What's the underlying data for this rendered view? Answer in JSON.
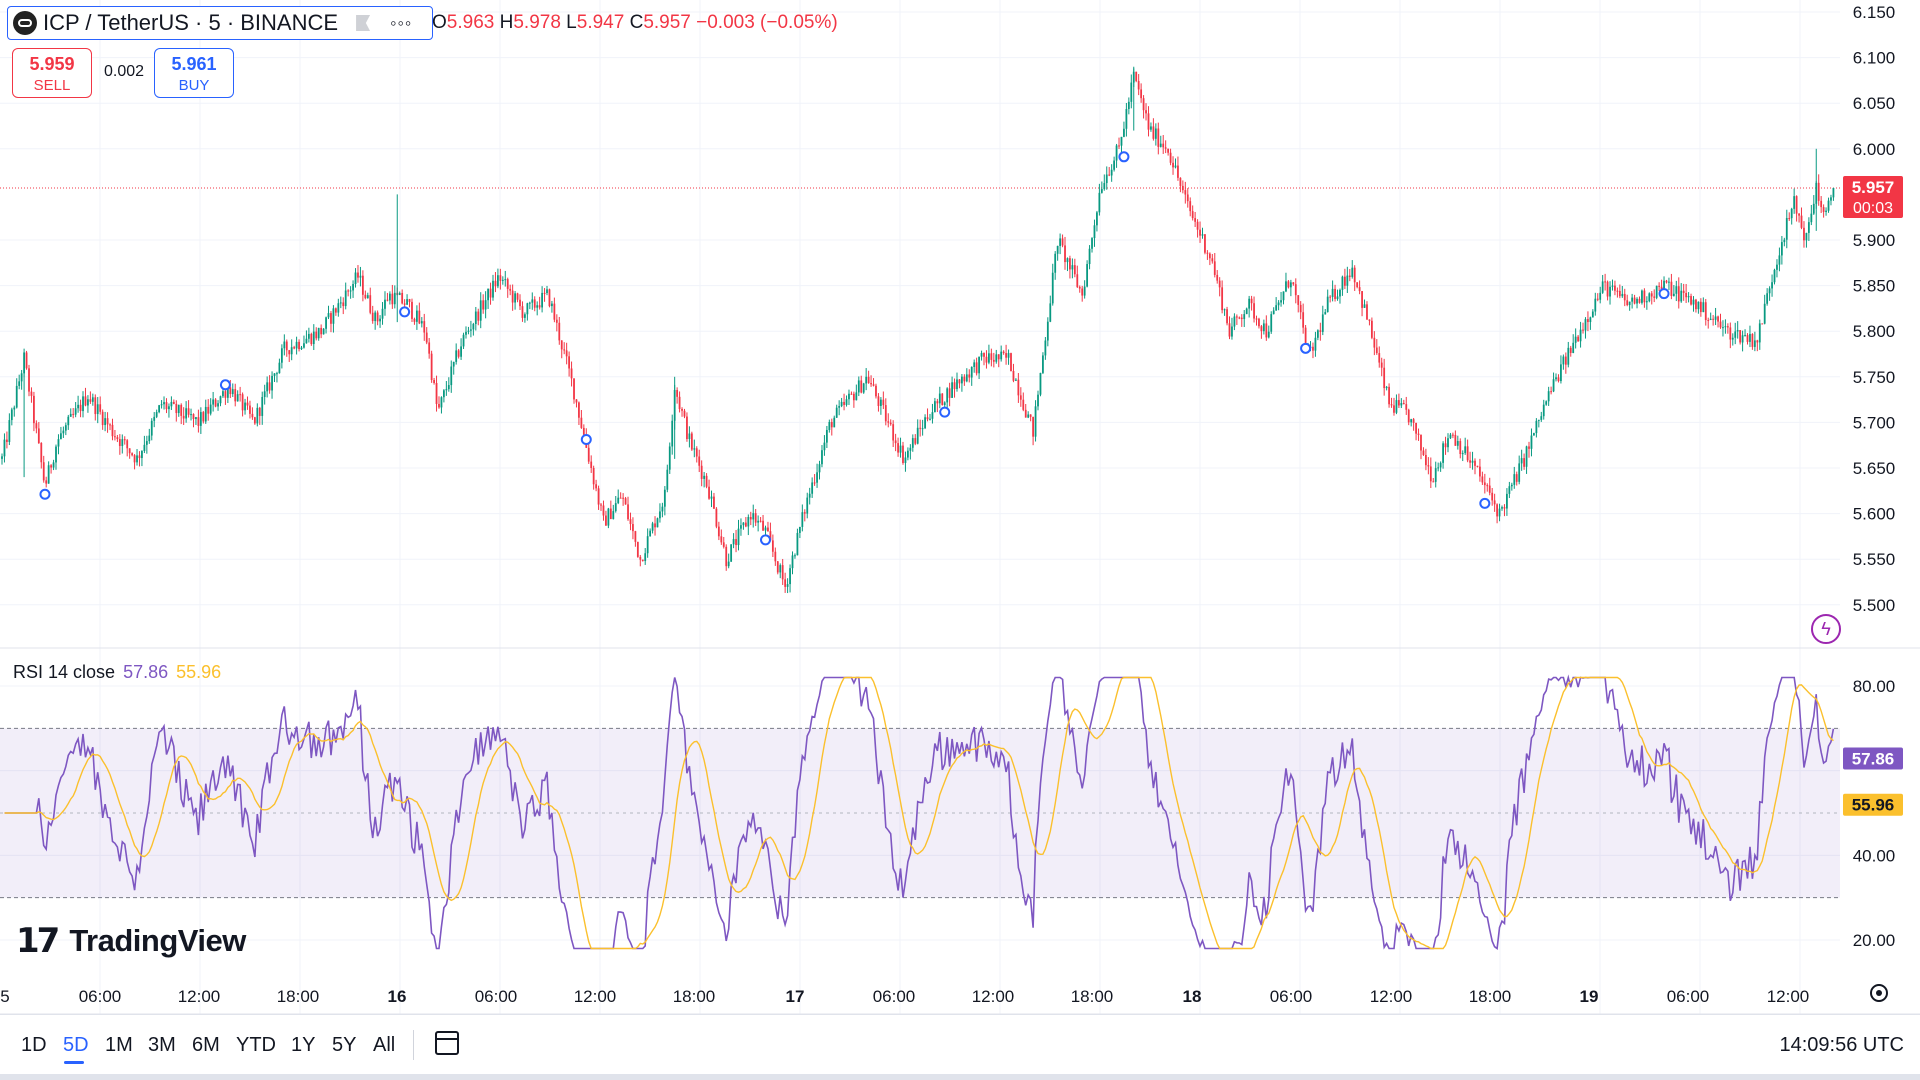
{
  "header": {
    "symbol": "ICP / TetherUS · 5 · BINANCE",
    "ohlc": {
      "o_label": "O",
      "o": "5.963",
      "h_label": "H",
      "h": "5.978",
      "l_label": "L",
      "l": "5.947",
      "c_label": "C",
      "c": "5.957",
      "change": "−0.003 (−0.05%)"
    },
    "sell": {
      "price": "5.959",
      "label": "SELL"
    },
    "spread": "0.002",
    "buy": {
      "price": "5.961",
      "label": "BUY"
    }
  },
  "price_axis": {
    "ticks": [
      "6.150",
      "6.100",
      "6.050",
      "6.000",
      "5.900",
      "5.850",
      "5.800",
      "5.750",
      "5.700",
      "5.650",
      "5.600",
      "5.550",
      "5.500"
    ]
  },
  "last_price": {
    "price": "5.957",
    "countdown": "00:03"
  },
  "rsi": {
    "label": "RSI 14 close",
    "value": "57.86",
    "ma_value": "55.96",
    "ticks": [
      "80.00",
      "40.00",
      "20.00"
    ],
    "upper_band": 70,
    "lower_band": 30
  },
  "time_axis": {
    "labels": [
      "5",
      "06:00",
      "12:00",
      "18:00",
      "16",
      "06:00",
      "12:00",
      "18:00",
      "17",
      "06:00",
      "12:00",
      "18:00",
      "18",
      "06:00",
      "12:00",
      "18:00",
      "19",
      "06:00",
      "12:00"
    ]
  },
  "branding": {
    "name": "TradingView"
  },
  "timeframes": {
    "items": [
      "1D",
      "5D",
      "1M",
      "3M",
      "6M",
      "YTD",
      "1Y",
      "5Y",
      "All"
    ],
    "active": "5D"
  },
  "clock": "14:09:56 UTC",
  "colors": {
    "up": "#089981",
    "down": "#f23645",
    "rsi": "#7e57c2",
    "rsi_ma": "#fbc02d",
    "accent": "#2962ff"
  },
  "chart_data": [
    {
      "type": "candlestick",
      "title": "ICP / TetherUS · 5 · BINANCE",
      "ylim": [
        5.48,
        6.155
      ],
      "anchors": [
        {
          "t": 0,
          "p": 5.66
        },
        {
          "t": 18,
          "p": 5.77
        },
        {
          "t": 35,
          "p": 5.63
        },
        {
          "t": 45,
          "p": 5.68
        },
        {
          "t": 70,
          "p": 5.73
        },
        {
          "t": 90,
          "p": 5.69
        },
        {
          "t": 110,
          "p": 5.66
        },
        {
          "t": 130,
          "p": 5.72
        },
        {
          "t": 160,
          "p": 5.7
        },
        {
          "t": 185,
          "p": 5.74
        },
        {
          "t": 205,
          "p": 5.7
        },
        {
          "t": 230,
          "p": 5.78
        },
        {
          "t": 260,
          "p": 5.8
        },
        {
          "t": 290,
          "p": 5.86
        },
        {
          "t": 305,
          "p": 5.81
        },
        {
          "t": 315,
          "p": 5.84
        },
        {
          "t": 330,
          "p": 5.83
        },
        {
          "t": 345,
          "p": 5.8
        },
        {
          "t": 355,
          "p": 5.71
        },
        {
          "t": 375,
          "p": 5.79
        },
        {
          "t": 405,
          "p": 5.86
        },
        {
          "t": 425,
          "p": 5.82
        },
        {
          "t": 445,
          "p": 5.84
        },
        {
          "t": 465,
          "p": 5.74
        },
        {
          "t": 475,
          "p": 5.68
        },
        {
          "t": 490,
          "p": 5.59
        },
        {
          "t": 505,
          "p": 5.62
        },
        {
          "t": 520,
          "p": 5.55
        },
        {
          "t": 540,
          "p": 5.62
        },
        {
          "t": 548,
          "p": 5.74
        },
        {
          "t": 560,
          "p": 5.68
        },
        {
          "t": 575,
          "p": 5.63
        },
        {
          "t": 590,
          "p": 5.55
        },
        {
          "t": 610,
          "p": 5.6
        },
        {
          "t": 622,
          "p": 5.58
        },
        {
          "t": 638,
          "p": 5.52
        },
        {
          "t": 655,
          "p": 5.61
        },
        {
          "t": 675,
          "p": 5.7
        },
        {
          "t": 705,
          "p": 5.75
        },
        {
          "t": 735,
          "p": 5.66
        },
        {
          "t": 755,
          "p": 5.71
        },
        {
          "t": 775,
          "p": 5.74
        },
        {
          "t": 800,
          "p": 5.77
        },
        {
          "t": 820,
          "p": 5.77
        },
        {
          "t": 840,
          "p": 5.69
        },
        {
          "t": 860,
          "p": 5.9
        },
        {
          "t": 880,
          "p": 5.84
        },
        {
          "t": 895,
          "p": 5.96
        },
        {
          "t": 910,
          "p": 6.0
        },
        {
          "t": 922,
          "p": 6.08
        },
        {
          "t": 935,
          "p": 6.02
        },
        {
          "t": 950,
          "p": 6.0
        },
        {
          "t": 965,
          "p": 5.94
        },
        {
          "t": 985,
          "p": 5.88
        },
        {
          "t": 1000,
          "p": 5.8
        },
        {
          "t": 1015,
          "p": 5.83
        },
        {
          "t": 1030,
          "p": 5.8
        },
        {
          "t": 1050,
          "p": 5.86
        },
        {
          "t": 1065,
          "p": 5.77
        },
        {
          "t": 1080,
          "p": 5.83
        },
        {
          "t": 1100,
          "p": 5.87
        },
        {
          "t": 1115,
          "p": 5.8
        },
        {
          "t": 1130,
          "p": 5.72
        },
        {
          "t": 1145,
          "p": 5.71
        },
        {
          "t": 1165,
          "p": 5.64
        },
        {
          "t": 1180,
          "p": 5.69
        },
        {
          "t": 1200,
          "p": 5.65
        },
        {
          "t": 1220,
          "p": 5.6
        },
        {
          "t": 1240,
          "p": 5.66
        },
        {
          "t": 1260,
          "p": 5.73
        },
        {
          "t": 1285,
          "p": 5.8
        },
        {
          "t": 1305,
          "p": 5.85
        },
        {
          "t": 1325,
          "p": 5.83
        },
        {
          "t": 1355,
          "p": 5.85
        },
        {
          "t": 1380,
          "p": 5.83
        },
        {
          "t": 1405,
          "p": 5.8
        },
        {
          "t": 1430,
          "p": 5.79
        },
        {
          "t": 1440,
          "p": 5.85
        },
        {
          "t": 1450,
          "p": 5.9
        },
        {
          "t": 1460,
          "p": 5.94
        },
        {
          "t": 1470,
          "p": 5.9
        },
        {
          "t": 1478,
          "p": 5.96
        },
        {
          "t": 1485,
          "p": 5.92
        },
        {
          "t": 1492,
          "p": 5.957
        }
      ],
      "last_close": 5.957,
      "markers": [
        {
          "t": 35,
          "p": 5.63
        },
        {
          "t": 182,
          "p": 5.75
        },
        {
          "t": 328,
          "p": 5.83
        },
        {
          "t": 476,
          "p": 5.69
        },
        {
          "t": 622,
          "p": 5.58
        },
        {
          "t": 768,
          "p": 5.72
        },
        {
          "t": 914,
          "p": 6.0
        },
        {
          "t": 1062,
          "p": 5.79
        },
        {
          "t": 1208,
          "p": 5.62
        },
        {
          "t": 1354,
          "p": 5.85
        }
      ]
    },
    {
      "type": "line",
      "title": "RSI 14 close",
      "ylim": [
        14,
        86
      ],
      "series": [
        {
          "name": "RSI"
        },
        {
          "name": "RSI MA"
        }
      ],
      "bands": [
        30,
        70
      ],
      "last_values": [
        57.86,
        55.96
      ]
    }
  ]
}
